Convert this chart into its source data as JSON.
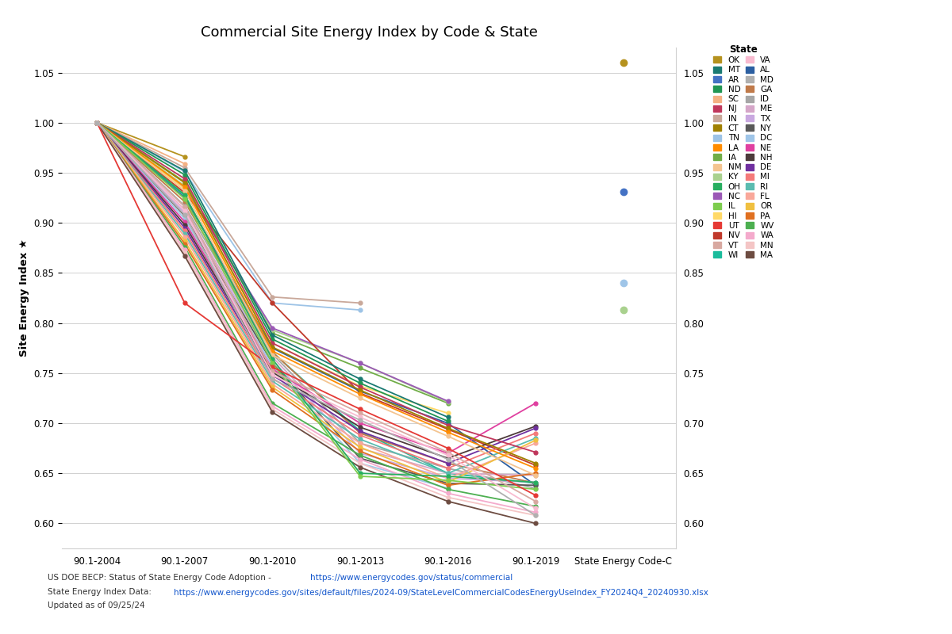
{
  "title": "Commercial Site Energy Index by Code & State",
  "ylabel": "Site Energy Index ★",
  "x_labels": [
    "90.1-2004",
    "90.1-2007",
    "90.1-2010",
    "90.1-2013",
    "90.1-2016",
    "90.1-2019",
    "State Energy Code-C"
  ],
  "ylim": [
    0.575,
    1.075
  ],
  "yticks": [
    0.6,
    0.65,
    0.7,
    0.75,
    0.8,
    0.85,
    0.9,
    0.95,
    1.0,
    1.05
  ],
  "footnote_plain1": "US DOE BECP: Status of State Energy Code Adoption - ",
  "footnote_link1": "https://www.energycodes.gov/status/commercial",
  "footnote_plain2": "State Energy Index Data: ",
  "footnote_link2": "https://www.energycodes.gov/sites/default/files/2024-09/StateLevelCommercialCodesEnergyUseIndex_FY2024Q4_20240930.xlsx",
  "footnote_plain3": "Updated as of 09/25/24",
  "legend_col1": [
    "OK",
    "AR",
    "SC",
    "IN",
    "TN",
    "IA",
    "KY",
    "NC",
    "HI",
    "NV",
    "WI",
    "AL",
    "GA",
    "ID",
    "ME",
    "TX",
    "NY",
    "DC",
    "NE",
    "NH",
    "DE",
    "MI",
    "RI",
    "FL",
    "OR",
    "PA",
    "WV",
    "WA",
    "MN",
    "MA"
  ],
  "legend_col2": [
    "MT",
    "ND",
    "NJ",
    "CT",
    "LA",
    "NM",
    "OH",
    "IL",
    "UT",
    "VT",
    "VA",
    "MD"
  ],
  "states": {
    "OK": {
      "color": "#b5921e",
      "line": [
        1.0,
        0.966,
        null,
        null,
        null,
        null
      ],
      "dot": 1.06
    },
    "AR": {
      "color": "#4472c4",
      "line": [
        1.0,
        null,
        null,
        null,
        null,
        null
      ],
      "dot": 0.931
    },
    "SC": {
      "color": "#f4b183",
      "line": [
        1.0,
        0.959,
        null,
        null,
        null,
        null
      ],
      "dot": null
    },
    "IN": {
      "color": "#c9a89a",
      "line": [
        1.0,
        0.955,
        0.826,
        0.82,
        null,
        null
      ],
      "dot": null
    },
    "TN": {
      "color": "#9dc3e6",
      "line": [
        1.0,
        0.951,
        0.82,
        0.813,
        null,
        null
      ],
      "dot": null
    },
    "IA": {
      "color": "#70ad47",
      "line": [
        1.0,
        0.941,
        0.79,
        0.755,
        0.72,
        null
      ],
      "dot": null
    },
    "KY": {
      "color": "#a9d18e",
      "line": [
        1.0,
        0.937,
        0.793,
        0.76,
        0.721,
        null
      ],
      "dot": 0.813
    },
    "NC": {
      "color": "#9b59b6",
      "line": [
        1.0,
        0.935,
        0.795,
        0.76,
        0.722,
        null
      ],
      "dot": null
    },
    "HI": {
      "color": "#ffd966",
      "line": [
        1.0,
        0.934,
        0.78,
        0.737,
        0.71,
        null
      ],
      "dot": null
    },
    "NV": {
      "color": "#c0392b",
      "line": [
        1.0,
        0.93,
        0.82,
        0.73,
        0.694,
        0.658
      ],
      "dot": null
    },
    "WI": {
      "color": "#1abc9c",
      "line": [
        1.0,
        0.927,
        0.771,
        0.692,
        0.65,
        0.64
      ],
      "dot": null
    },
    "AL": {
      "color": "#2c5fa1",
      "line": [
        1.0,
        0.925,
        0.775,
        0.732,
        0.7,
        0.638
      ],
      "dot": null
    },
    "GA": {
      "color": "#c07a4a",
      "line": [
        1.0,
        0.921,
        0.771,
        0.69,
        0.66,
        0.64
      ],
      "dot": null
    },
    "ID": {
      "color": "#a6a6a6",
      "line": [
        1.0,
        0.917,
        0.769,
        0.68,
        0.655,
        0.635
      ],
      "dot": null
    },
    "ME": {
      "color": "#d5a6c8",
      "line": [
        1.0,
        0.913,
        0.766,
        0.675,
        0.65,
        0.648
      ],
      "dot": null
    },
    "TX": {
      "color": "#c9a8e0",
      "line": [
        1.0,
        0.91,
        0.763,
        0.67,
        0.645,
        0.641
      ],
      "dot": null
    },
    "NY": {
      "color": "#595959",
      "line": [
        1.0,
        0.907,
        0.76,
        0.665,
        0.64,
        0.638
      ],
      "dot": null
    },
    "DC": {
      "color": "#9fc5e8",
      "line": [
        1.0,
        0.904,
        0.757,
        0.66,
        0.635,
        null
      ],
      "dot": 0.84
    },
    "NE": {
      "color": "#e040a0",
      "line": [
        1.0,
        0.901,
        0.754,
        0.7,
        0.67,
        0.72
      ],
      "dot": null
    },
    "NH": {
      "color": "#4d3b3b",
      "line": [
        1.0,
        0.898,
        0.751,
        0.696,
        0.665,
        0.697
      ],
      "dot": null
    },
    "DE": {
      "color": "#7030a0",
      "line": [
        1.0,
        0.895,
        0.748,
        0.692,
        0.66,
        0.695
      ],
      "dot": null
    },
    "MI": {
      "color": "#f47a7a",
      "line": [
        1.0,
        0.892,
        0.745,
        0.688,
        0.655,
        0.69
      ],
      "dot": null
    },
    "RI": {
      "color": "#5bbcb0",
      "line": [
        1.0,
        0.889,
        0.742,
        0.684,
        0.65,
        0.685
      ],
      "dot": null
    },
    "FL": {
      "color": "#f9a89a",
      "line": [
        1.0,
        0.886,
        0.739,
        0.68,
        0.645,
        0.68
      ],
      "dot": null
    },
    "OR": {
      "color": "#f0c040",
      "line": [
        1.0,
        0.882,
        0.736,
        0.676,
        0.641,
        0.683
      ],
      "dot": null
    },
    "PA": {
      "color": "#e07020",
      "line": [
        1.0,
        0.879,
        0.733,
        0.672,
        0.638,
        0.65
      ],
      "dot": null
    },
    "WV": {
      "color": "#4caf50",
      "line": [
        1.0,
        0.876,
        0.72,
        0.668,
        0.634,
        0.617
      ],
      "dot": null
    },
    "WA": {
      "color": "#f4aacc",
      "line": [
        1.0,
        0.873,
        0.717,
        0.664,
        0.63,
        0.611
      ],
      "dot": null
    },
    "MN": {
      "color": "#f4c5c5",
      "line": [
        1.0,
        0.87,
        0.714,
        0.66,
        0.626,
        0.608
      ],
      "dot": null
    },
    "MA": {
      "color": "#6d4c41",
      "line": [
        1.0,
        0.867,
        0.711,
        0.656,
        0.622,
        0.6
      ],
      "dot": null
    },
    "MT": {
      "color": "#1a7a72",
      "line": [
        1.0,
        0.952,
        0.788,
        0.744,
        0.706,
        null
      ],
      "dot": null
    },
    "ND": {
      "color": "#219653",
      "line": [
        1.0,
        0.948,
        0.784,
        0.74,
        0.702,
        null
      ],
      "dot": null
    },
    "NJ": {
      "color": "#c0375c",
      "line": [
        1.0,
        0.944,
        0.78,
        0.736,
        0.698,
        0.671
      ],
      "dot": null
    },
    "CT": {
      "color": "#a08000",
      "line": [
        1.0,
        0.94,
        0.776,
        0.733,
        0.695,
        0.66
      ],
      "dot": null
    },
    "LA": {
      "color": "#ff8c00",
      "line": [
        1.0,
        0.936,
        0.772,
        0.729,
        0.691,
        0.655
      ],
      "dot": null
    },
    "NM": {
      "color": "#f4c490",
      "line": [
        1.0,
        0.932,
        0.768,
        0.725,
        0.687,
        0.648
      ],
      "dot": null
    },
    "OH": {
      "color": "#27ae60",
      "line": [
        1.0,
        0.928,
        0.764,
        0.65,
        0.647,
        0.641
      ],
      "dot": null
    },
    "IL": {
      "color": "#7dcd4e",
      "line": [
        1.0,
        0.924,
        0.76,
        0.647,
        0.643,
        0.634
      ],
      "dot": null
    },
    "UT": {
      "color": "#e53935",
      "line": [
        1.0,
        0.82,
        0.756,
        0.714,
        0.675,
        0.628
      ],
      "dot": null
    },
    "VT": {
      "color": "#d8a8a0",
      "line": [
        1.0,
        0.916,
        0.752,
        0.71,
        0.671,
        0.622
      ],
      "dot": null
    },
    "VA": {
      "color": "#f8bbd0",
      "line": [
        1.0,
        0.912,
        0.748,
        0.706,
        0.668,
        0.615
      ],
      "dot": null
    },
    "MD": {
      "color": "#b0b0b0",
      "line": [
        1.0,
        0.908,
        0.744,
        0.703,
        0.664,
        0.608
      ],
      "dot": null
    }
  }
}
